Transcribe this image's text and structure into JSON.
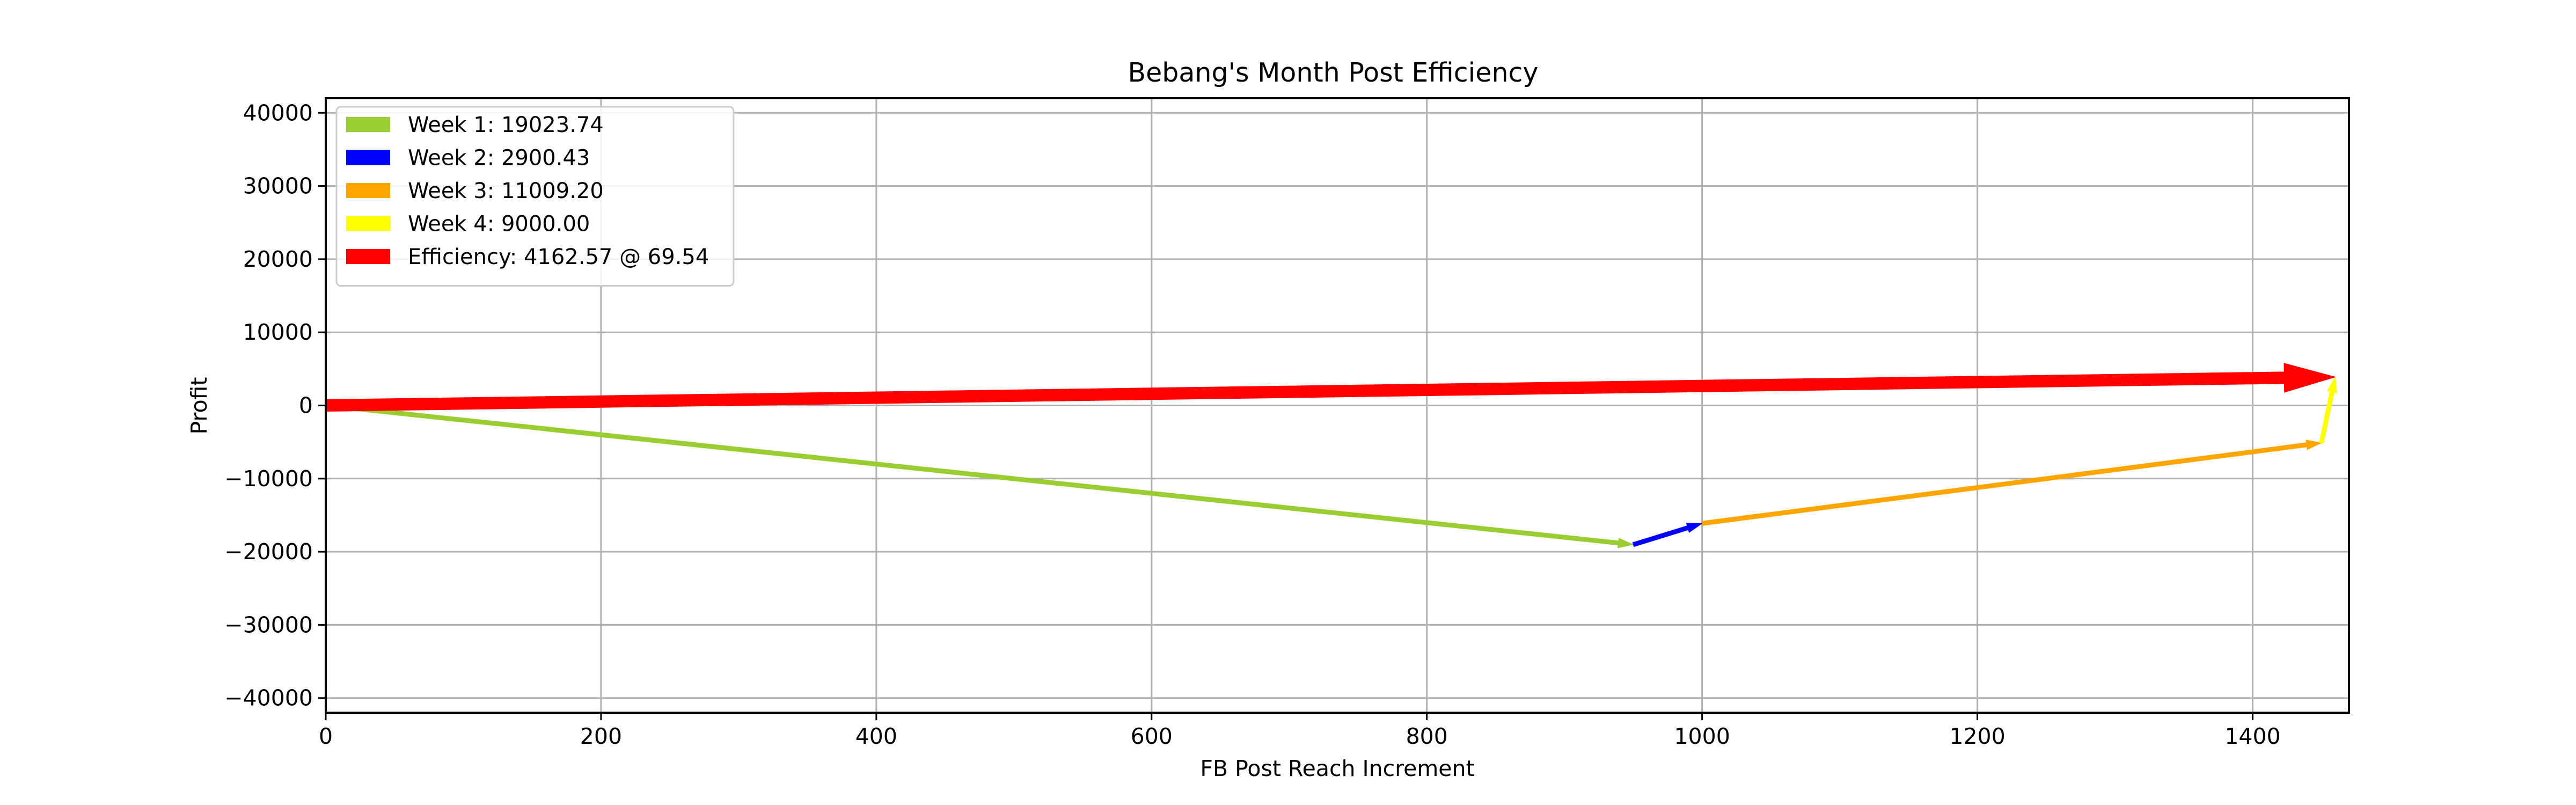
{
  "chart_data": {
    "type": "quiver",
    "title": "Bebang's Month Post Efficiency",
    "xlabel": "FB Post Reach Increment",
    "ylabel": "Profit",
    "xlim": [
      0,
      1470
    ],
    "ylim": [
      -42000,
      42000
    ],
    "x_ticks": [
      0,
      200,
      400,
      600,
      800,
      1000,
      1200,
      1400
    ],
    "y_ticks": [
      40000,
      30000,
      20000,
      10000,
      0,
      -10000,
      -20000,
      -30000,
      -40000
    ],
    "x_tick_labels": [
      "0",
      "200",
      "400",
      "600",
      "800",
      "1000",
      "1200",
      "1400"
    ],
    "y_tick_labels": [
      "40000",
      "30000",
      "20000",
      "10000",
      "0",
      "−10000",
      "−20000",
      "−30000",
      "−40000"
    ],
    "grid": true,
    "legend_position": "upper-left",
    "series": [
      {
        "name": "Week 1: 19023.74",
        "color": "#9acd32",
        "x0": 0,
        "y0": 0,
        "x1": 950,
        "y1": -19023.74,
        "width": "thin"
      },
      {
        "name": "Week 2: 2900.43",
        "color": "#0000ff",
        "x0": 950,
        "y0": -19023.74,
        "x1": 1000,
        "y1": -16123.31,
        "width": "thin"
      },
      {
        "name": "Week 3: 11009.20",
        "color": "#ffa500",
        "x0": 1000,
        "y0": -16123.31,
        "x1": 1450,
        "y1": -5114.11,
        "width": "thin"
      },
      {
        "name": "Week 4: 9000.00",
        "color": "#ffff00",
        "x0": 1450,
        "y0": -5114.11,
        "x1": 1460,
        "y1": 3885.89,
        "width": "thin"
      },
      {
        "name": "Efficiency: 4162.57 @ 69.54",
        "color": "#ff0000",
        "x0": 0,
        "y0": 0,
        "x1": 1460,
        "y1": 3885.89,
        "width": "thick"
      }
    ]
  }
}
